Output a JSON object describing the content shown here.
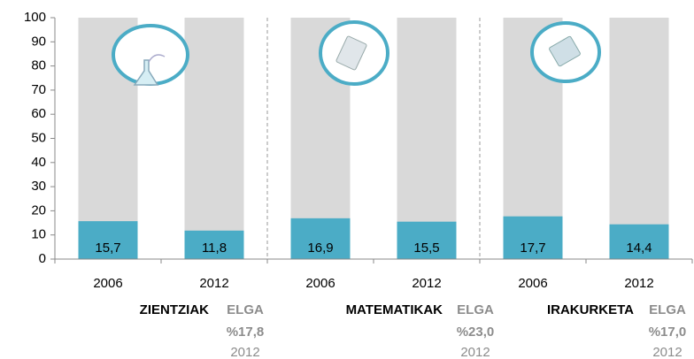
{
  "chart_data": {
    "type": "bar",
    "categories": [
      "2006",
      "2012",
      "2006",
      "2012",
      "2006",
      "2012"
    ],
    "values": [
      15.7,
      11.8,
      16.9,
      15.5,
      17.7,
      14.4
    ],
    "value_labels": [
      "15,7",
      "11,8",
      "16,9",
      "15,5",
      "17,7",
      "14,4"
    ],
    "color": "#4bacc6",
    "background_color": "#d9d9d9",
    "ylim": [
      0,
      100
    ],
    "yticks": [
      0,
      10,
      20,
      30,
      40,
      50,
      60,
      70,
      80,
      90,
      100
    ],
    "groups": [
      {
        "name": "ZIENTZIAK",
        "note_label": "ELGA",
        "note_value": "%17,8",
        "note_year": "2012"
      },
      {
        "name": "MATEMATIKAK",
        "note_label": "ELGA",
        "note_value": "%23,0",
        "note_year": "2012"
      },
      {
        "name": "IRAKURKETA",
        "note_label": "ELGA",
        "note_value": "%17,0",
        "note_year": "2012"
      }
    ]
  }
}
